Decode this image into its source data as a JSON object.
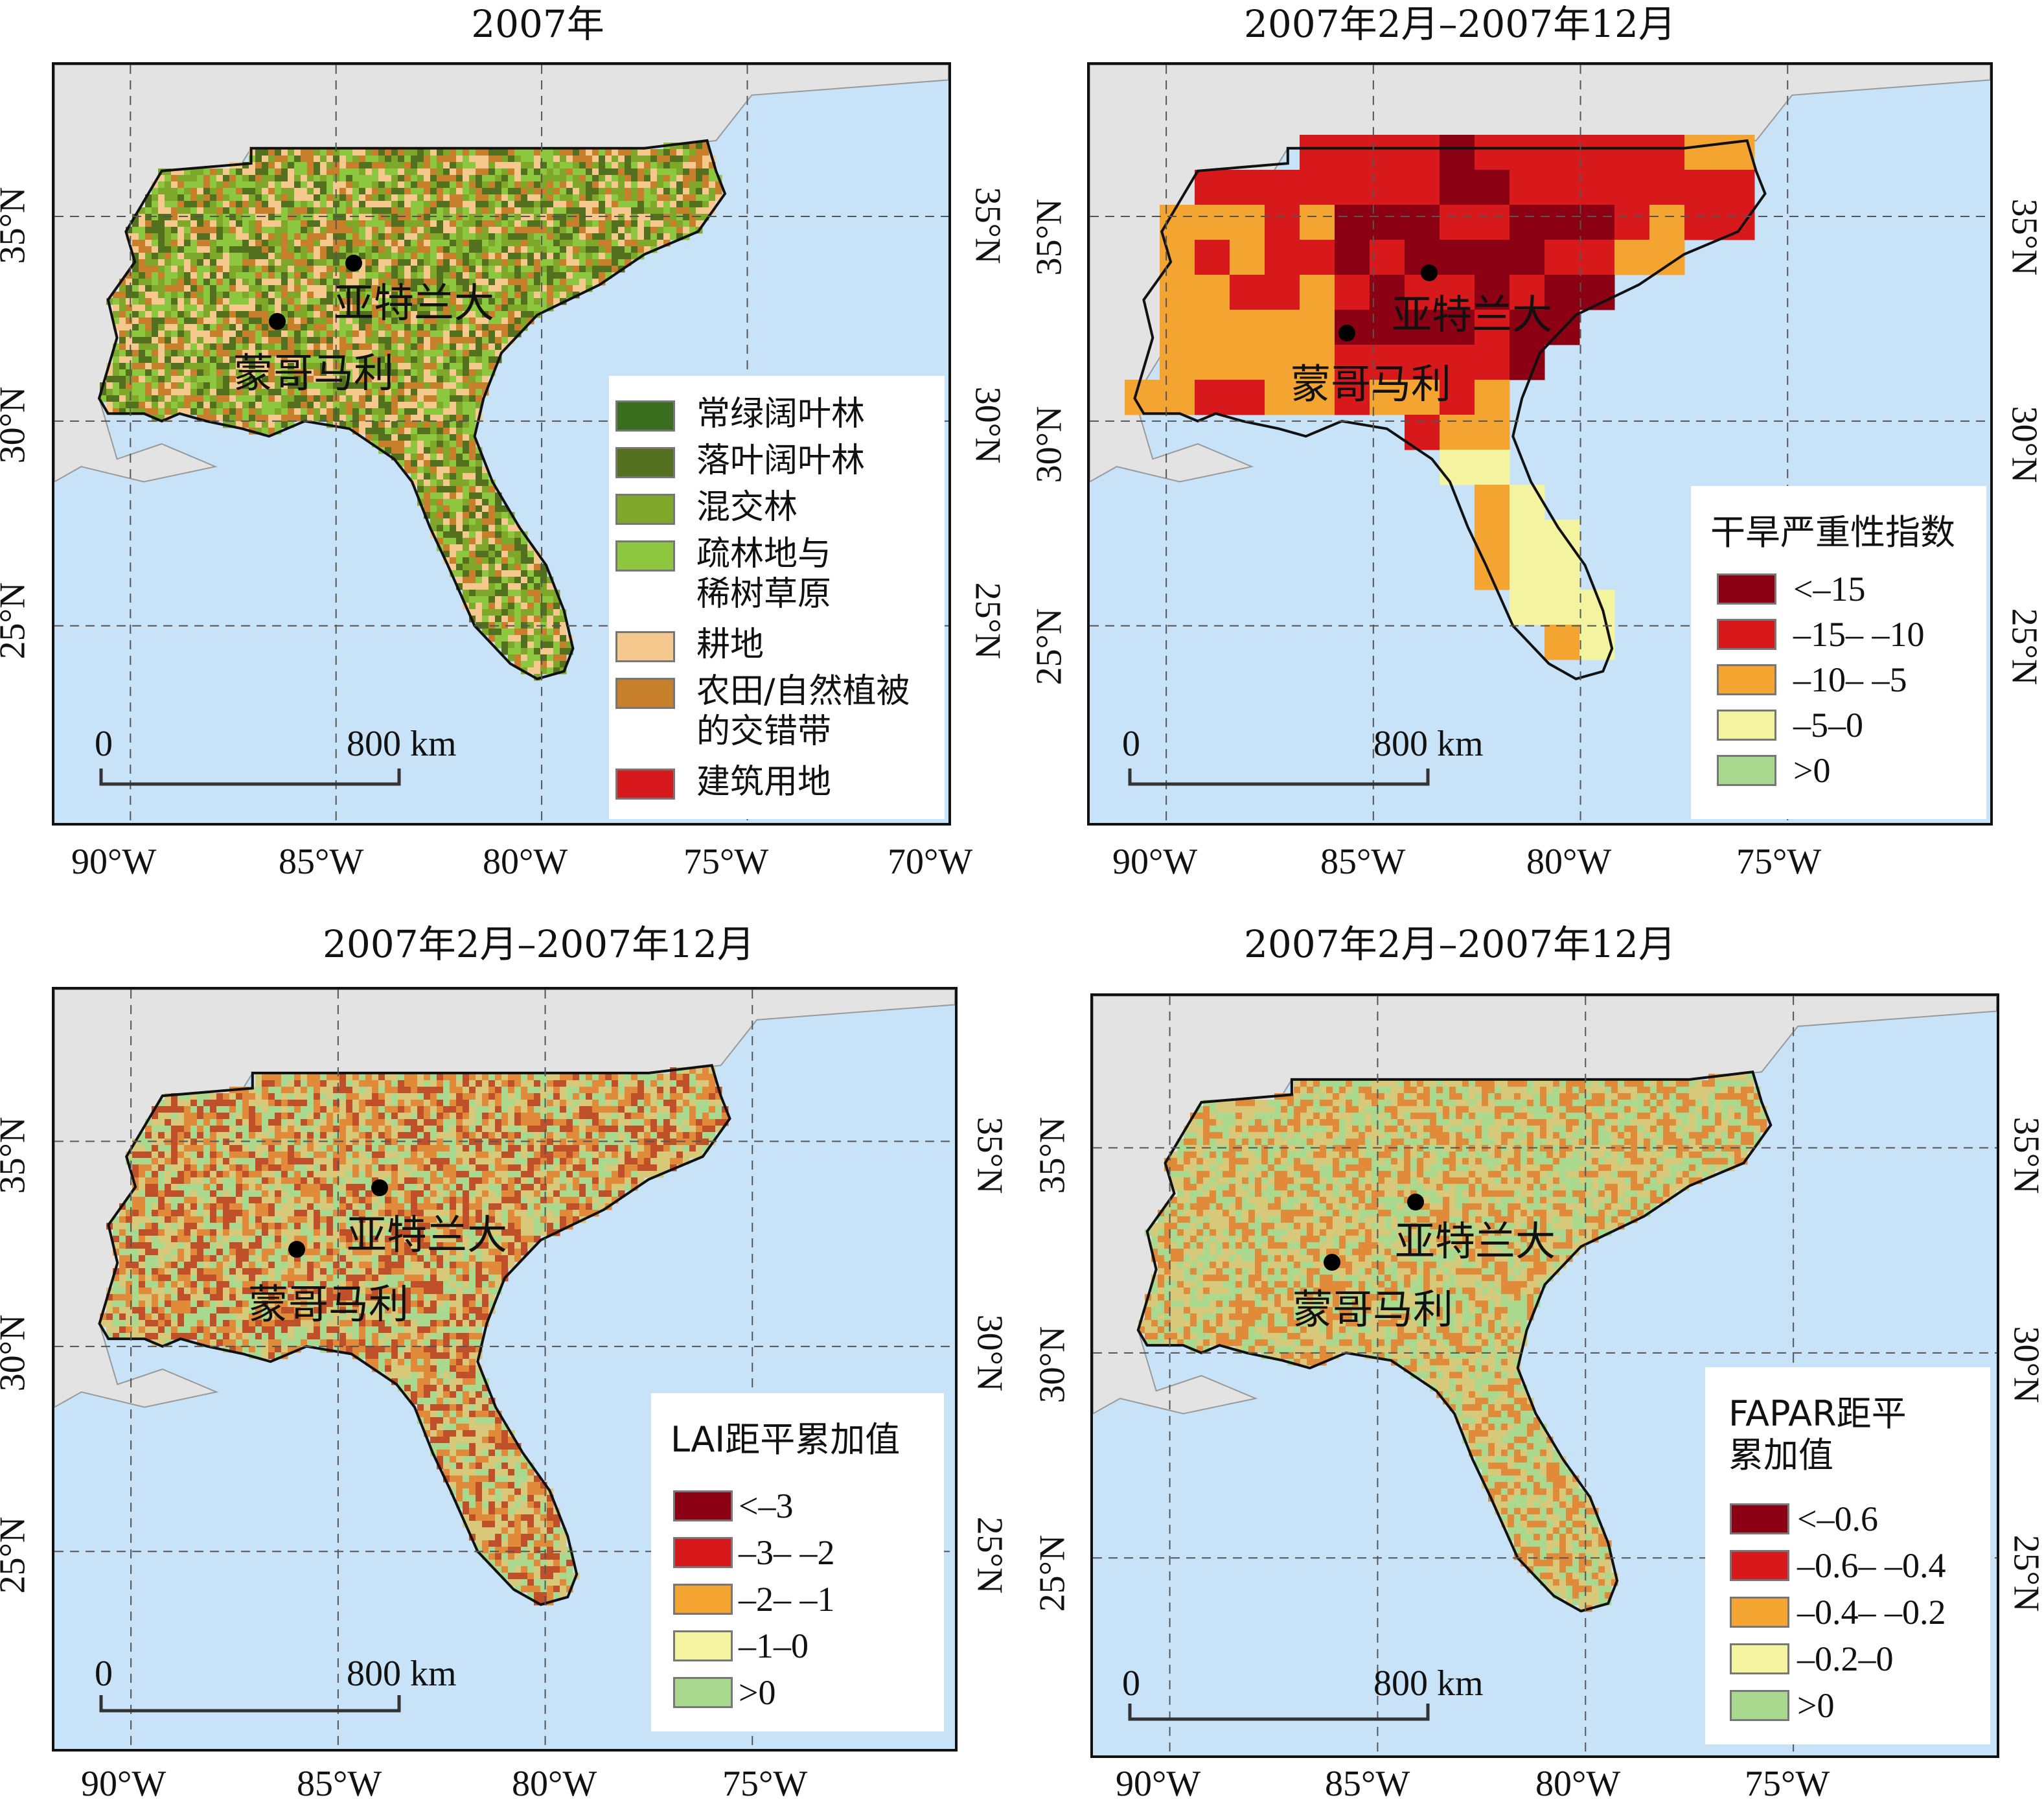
{
  "panels": [
    {
      "title": "2007年",
      "city_atlanta": "亚特兰大",
      "city_montgomery": "蒙哥马利",
      "scale_zero": "0",
      "scale_distance": "800 km",
      "legend": {
        "title": "",
        "items": [
          {
            "label": "常绿阔叶林",
            "color": "#3a6e1e"
          },
          {
            "label": "落叶阔叶林",
            "color": "#52701e"
          },
          {
            "label": "混交林",
            "color": "#7fa82a"
          },
          {
            "label": "疏林地与\n稀树草原",
            "color": "#8dc63f"
          },
          {
            "label": "耕地",
            "color": "#f5c98d"
          },
          {
            "label": "农田/自然植被\n的交错带",
            "color": "#c87f2c"
          },
          {
            "label": "建筑用地",
            "color": "#d7191c"
          }
        ]
      },
      "x_ticks": [
        "90°W",
        "85°W",
        "80°W",
        "75°W",
        "70°W"
      ],
      "y_ticks_left": [
        "35°N",
        "30°N",
        "25°N"
      ],
      "y_ticks_right": [
        "35°N",
        "30°N",
        "25°N"
      ],
      "fill_palette": [
        "#7fa82a",
        "#8dc63f",
        "#c87f2c",
        "#52701e",
        "#f5c98d"
      ]
    },
    {
      "title": "2007年2月–2007年12月",
      "city_atlanta": "亚特兰大",
      "city_montgomery": "蒙哥马利",
      "scale_zero": "0",
      "scale_distance": "800 km",
      "legend": {
        "title": "干旱严重性指数",
        "items": [
          {
            "label": "<–15",
            "color": "#8b0012"
          },
          {
            "label": "–15– –10",
            "color": "#d7191c"
          },
          {
            "label": "–10– –5",
            "color": "#f4a431"
          },
          {
            "label": "–5–0",
            "color": "#f3f3a0"
          },
          {
            "label": ">0",
            "color": "#a9d98e"
          }
        ]
      },
      "x_ticks": [
        "90°W",
        "85°W",
        "80°W",
        "75°W"
      ],
      "y_ticks_left": [
        "35°N",
        "30°N",
        "25°N"
      ],
      "y_ticks_right": [
        "35°N",
        "30°N",
        "25°N"
      ],
      "fill_palette": [
        "#d7191c",
        "#f4a431",
        "#8b0012",
        "#f3f3a0"
      ]
    },
    {
      "title": "2007年2月–2007年12月",
      "city_atlanta": "亚特兰大",
      "city_montgomery": "蒙哥马利",
      "scale_zero": "0",
      "scale_distance": "800 km",
      "legend": {
        "title": "LAI距平累加值",
        "items": [
          {
            "label": "<–3",
            "color": "#8b0012"
          },
          {
            "label": "–3– –2",
            "color": "#d7191c"
          },
          {
            "label": "–2– –1",
            "color": "#f4a431"
          },
          {
            "label": "–1–0",
            "color": "#f3f3a0"
          },
          {
            "label": ">0",
            "color": "#a9d98e"
          }
        ]
      },
      "x_ticks": [
        "90°W",
        "85°W",
        "80°W",
        "75°W"
      ],
      "y_ticks_left": [
        "35°N",
        "30°N",
        "25°N"
      ],
      "y_ticks_right": [
        "35°N",
        "30°N",
        "25°N"
      ],
      "fill_palette": [
        "#a9d98e",
        "#d8c87a",
        "#e08a3a",
        "#c0502a"
      ]
    },
    {
      "title": "2007年2月–2007年12月",
      "city_atlanta": "亚特兰大",
      "city_montgomery": "蒙哥马利",
      "scale_zero": "0",
      "scale_distance": "800 km",
      "legend": {
        "title": "FAPAR距平\n累加值",
        "items": [
          {
            "label": "<–0.6",
            "color": "#8b0012"
          },
          {
            "label": "–0.6– –0.4",
            "color": "#d7191c"
          },
          {
            "label": "–0.4– –0.2",
            "color": "#f4a431"
          },
          {
            "label": "–0.2–0",
            "color": "#f3f3a0"
          },
          {
            "label": ">0",
            "color": "#a9d98e"
          }
        ]
      },
      "x_ticks": [
        "90°W",
        "85°W",
        "80°W",
        "75°W"
      ],
      "y_ticks_left": [
        "35°N",
        "30°N",
        "25°N"
      ],
      "y_ticks_right": [
        "35°N",
        "30°N",
        "25°N"
      ],
      "fill_palette": [
        "#a9d98e",
        "#d8c87a",
        "#e08a3a"
      ]
    }
  ],
  "colors": {
    "ocean": "#c8e3f8",
    "land_outside": "#e3e3e3",
    "grid": "#555555"
  }
}
